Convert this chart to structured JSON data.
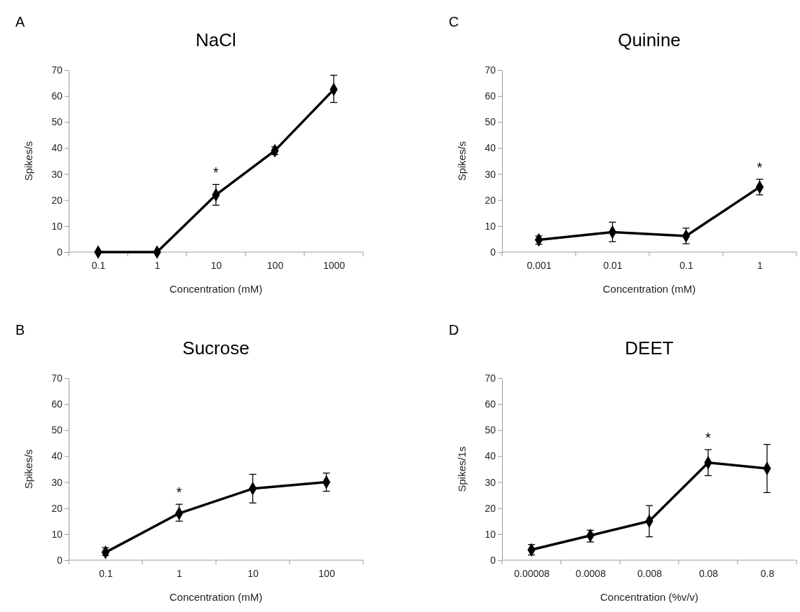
{
  "chart_data": [
    {
      "type": "line",
      "title": "NaCl",
      "xlabel": "Concentration  (mM)",
      "ylabel": "Spikes/s",
      "categories": [
        "0.1",
        "1",
        "10",
        "100",
        "1000"
      ],
      "values": [
        0,
        0,
        22,
        39,
        62.5
      ],
      "errors": [
        null,
        null,
        [
          18,
          26
        ],
        [
          37.5,
          40.5
        ],
        [
          57.5,
          68
        ]
      ],
      "color": "#000000",
      "ylim": [
        0,
        70
      ],
      "yticks": [
        0,
        10,
        20,
        30,
        40,
        50,
        60,
        70
      ],
      "marker": "diamond",
      "annotations": [
        "A",
        {
          "text": "*",
          "x": "10",
          "y": 22
        }
      ]
    },
    {
      "type": "line",
      "title": "Quinine",
      "xlabel": "Concentration  (mM)",
      "ylabel": "Spikes/s",
      "categories": [
        "0.001",
        "0.01",
        "0.1",
        "1"
      ],
      "values": [
        4.7,
        7.7,
        6.2,
        25
      ],
      "errors": [
        [
          3,
          6.2
        ],
        [
          4,
          11.5
        ],
        [
          3.2,
          9.2
        ],
        [
          22,
          28
        ]
      ],
      "color": "#000000",
      "ylim": [
        0,
        70
      ],
      "yticks": [
        0,
        10,
        20,
        30,
        40,
        50,
        60,
        70
      ],
      "marker": "diamond",
      "annotations": [
        "C",
        {
          "text": "*",
          "x": "1",
          "y": 25
        }
      ]
    },
    {
      "type": "line",
      "title": "Sucrose",
      "xlabel": "Concentration  (mM)",
      "ylabel": "Spikes/s",
      "categories": [
        "0.1",
        "1",
        "10",
        "100"
      ],
      "values": [
        3,
        18,
        27.5,
        30
      ],
      "errors": [
        [
          1.8,
          4.8
        ],
        [
          15,
          21.5
        ],
        [
          22,
          33
        ],
        [
          26.5,
          33.5
        ]
      ],
      "color": "#000000",
      "ylim": [
        0,
        70
      ],
      "yticks": [
        0,
        10,
        20,
        30,
        40,
        50,
        60,
        70
      ],
      "marker": "diamond",
      "annotations": [
        "B",
        {
          "text": "*",
          "x": "1",
          "y": 18
        }
      ]
    },
    {
      "type": "line",
      "title": "DEET",
      "xlabel": "Concentration  (%v/v)",
      "ylabel": "Spikes/1s",
      "categories": [
        "0.00008",
        "0.0008",
        "0.008",
        "0.08",
        "0.8"
      ],
      "values": [
        4,
        9.5,
        15,
        37.5,
        35.3
      ],
      "errors": [
        [
          2,
          6
        ],
        [
          7,
          11.5
        ],
        [
          9,
          21
        ],
        [
          32.5,
          42.5
        ],
        [
          26,
          44.5
        ]
      ],
      "color": "#000000",
      "ylim": [
        0,
        70
      ],
      "yticks": [
        0,
        10,
        20,
        30,
        40,
        50,
        60,
        70
      ],
      "marker": "diamond",
      "annotations": [
        "D",
        {
          "text": "*",
          "x": "0.08",
          "y": 37.5
        }
      ]
    }
  ]
}
